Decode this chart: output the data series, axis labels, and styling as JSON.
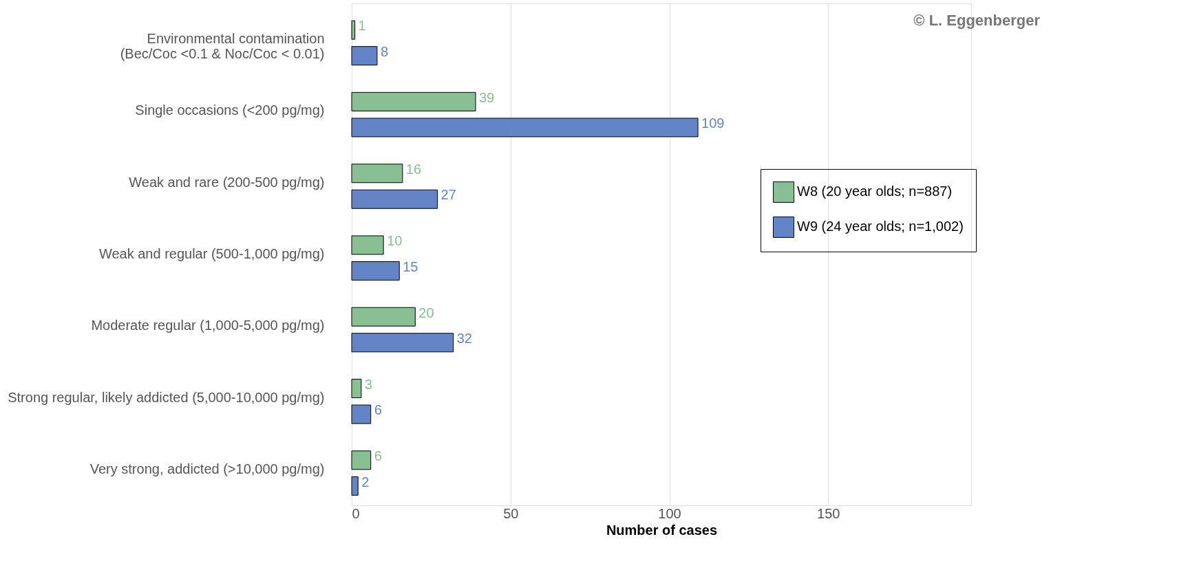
{
  "chart_data": {
    "type": "bar",
    "orientation": "horizontal",
    "xlabel": "Number of cases",
    "categories": [
      "Environmental contamination\n(Bec/Coc <0.1 & Noc/Coc < 0.01)",
      "Single occasions (<200 pg/mg)",
      "Weak and rare (200-500 pg/mg)",
      "Weak and regular (500-1,000 pg/mg)",
      "Moderate regular (1,000-5,000 pg/mg)",
      "Strong regular, likely addicted (5,000-10,000 pg/mg)",
      "Very strong, addicted (>10,000 pg/mg)"
    ],
    "series": [
      {
        "name": "W8 (20 year olds; n=887)",
        "color": "#88bf93",
        "values": [
          1,
          39,
          16,
          10,
          20,
          3,
          6
        ]
      },
      {
        "name": "W9 (24 year olds; n=1,002)",
        "color": "#6484c8",
        "values": [
          8,
          109,
          27,
          15,
          32,
          6,
          2
        ]
      }
    ],
    "xlim": [
      0,
      195
    ],
    "xticks": [
      0,
      50,
      100,
      150
    ],
    "grid": "x",
    "legend": "right",
    "data_labels": true,
    "annotations": [
      "© L. Eggenberger"
    ]
  }
}
